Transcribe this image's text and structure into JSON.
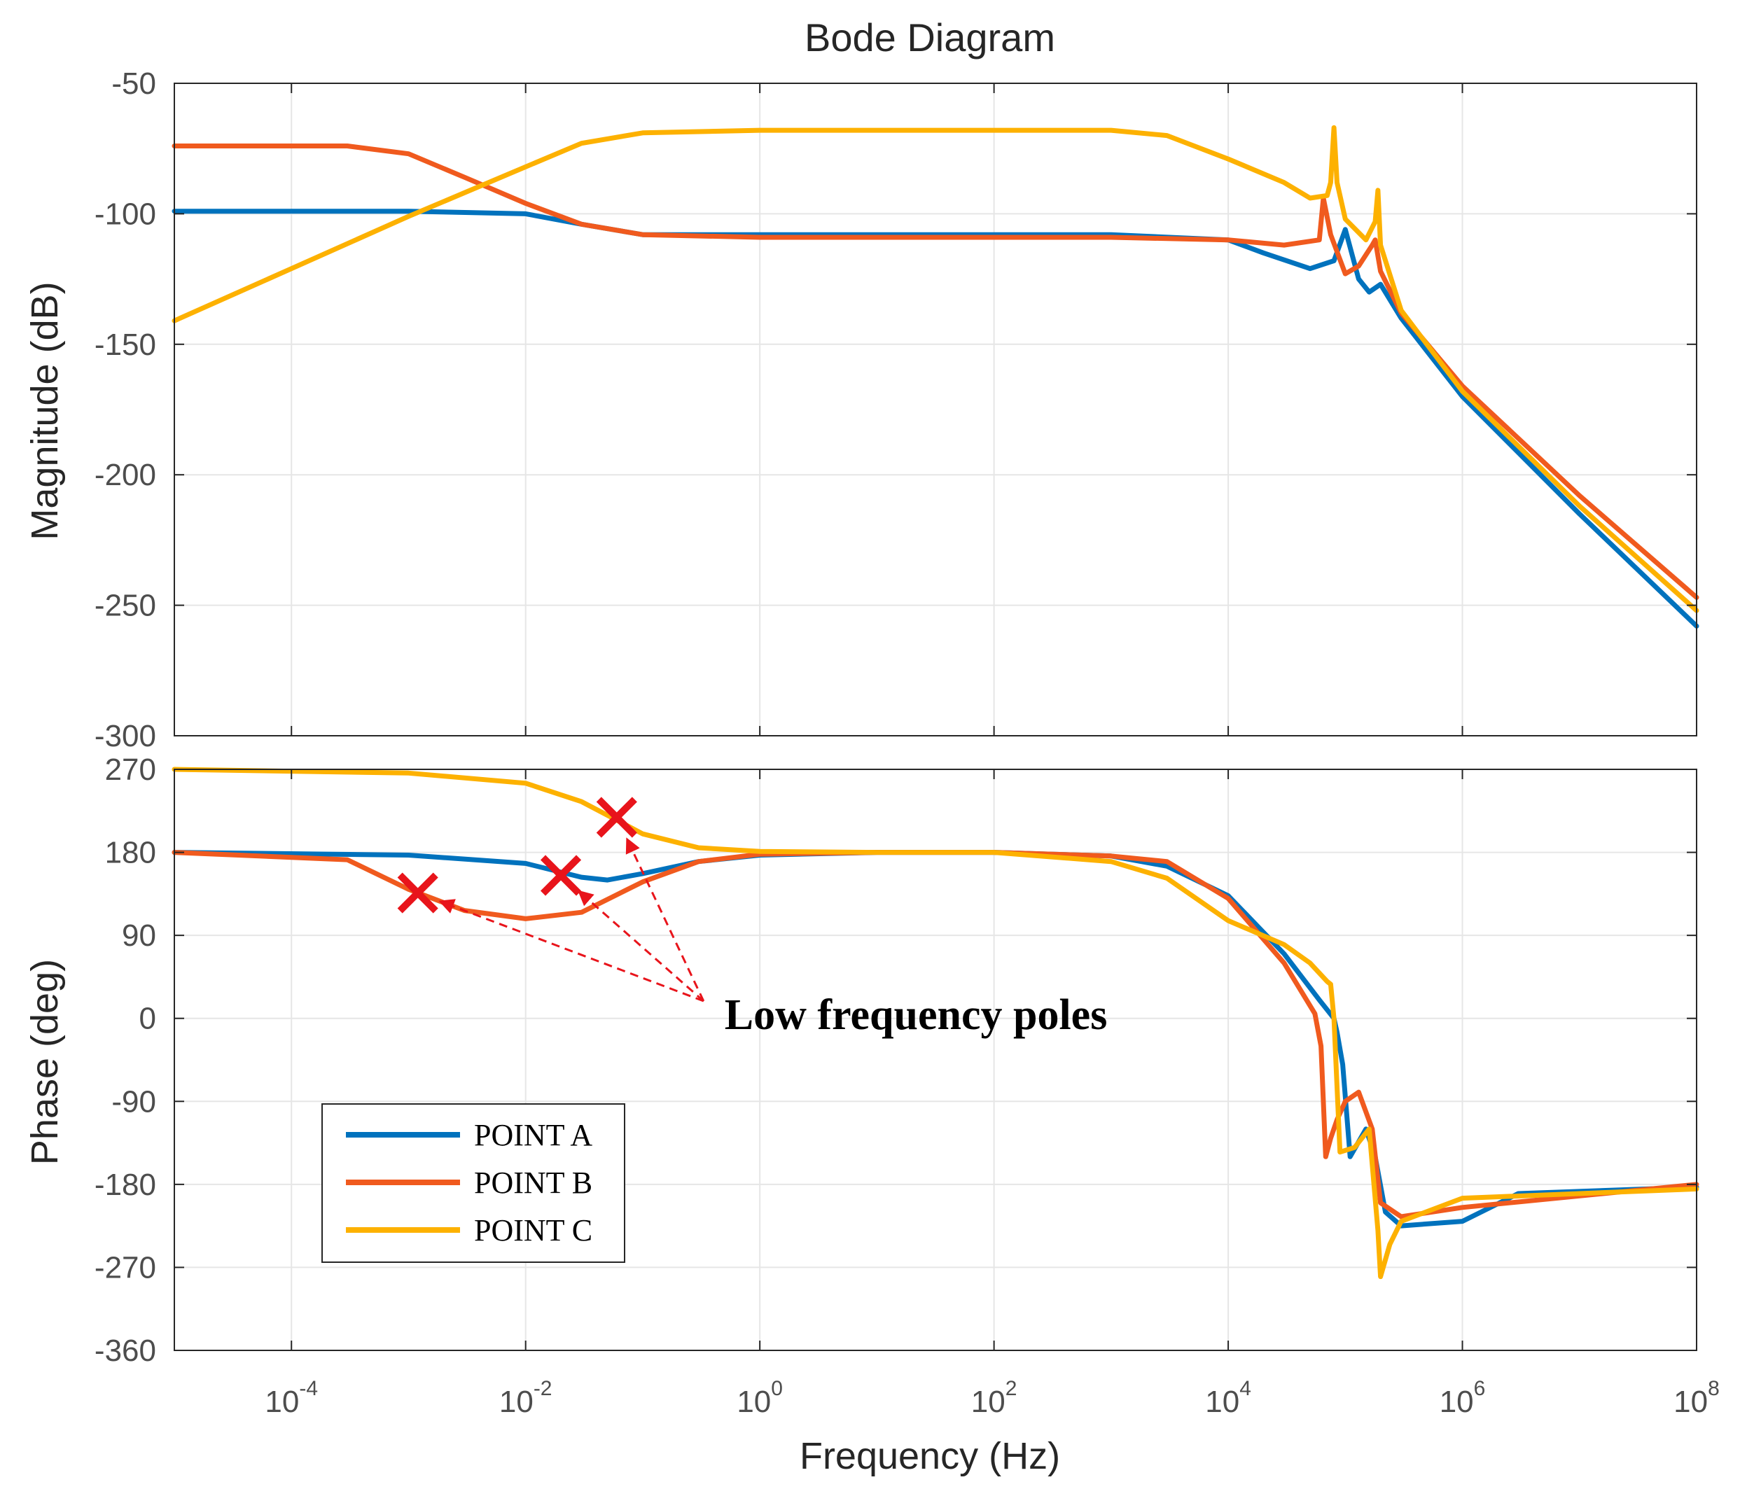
{
  "colors": {
    "background": "#ffffff",
    "axes": "#262626",
    "grid": "#e6e6e6",
    "point_a": "#0072bd",
    "point_b": "#f05a1e",
    "point_c": "#fdb100",
    "marker": "#e8141b"
  },
  "chart_data": {
    "type": "line",
    "title": "Bode Diagram",
    "xlabel": "Frequency  (Hz)",
    "xscale": "log",
    "xlim": [
      1e-05,
      100000000
    ],
    "xtick_labels": [
      {
        "value": 0.0001,
        "base": "10",
        "exp": "-4"
      },
      {
        "value": 0.01,
        "base": "10",
        "exp": "-2"
      },
      {
        "value": 1,
        "base": "10",
        "exp": "0"
      },
      {
        "value": 100,
        "base": "10",
        "exp": "2"
      },
      {
        "value": 10000,
        "base": "10",
        "exp": "4"
      },
      {
        "value": 1000000,
        "base": "10",
        "exp": "6"
      },
      {
        "value": 100000000,
        "base": "10",
        "exp": "8"
      }
    ],
    "grid": true,
    "legend": {
      "placement": "bottom-left of phase panel",
      "entries": [
        "POINT A",
        "POINT B",
        "POINT C"
      ]
    },
    "panels": [
      {
        "name": "magnitude",
        "ylabel": "Magnitude (dB)",
        "ylim": [
          -300,
          -50
        ],
        "yticks": [
          -50,
          -100,
          -150,
          -200,
          -250,
          -300
        ],
        "series": [
          {
            "name": "POINT A",
            "x": [
              1e-05,
              0.001,
              0.01,
              0.03,
              0.1,
              1,
              10,
              100,
              1000,
              10000,
              20000,
              50000,
              80000,
              100000,
              130000,
              160000,
              200000,
              300000,
              1000000,
              10000000,
              100000000
            ],
            "y": [
              -99,
              -99,
              -100,
              -104,
              -108,
              -108,
              -108,
              -108,
              -108,
              -110,
              -115,
              -121,
              -118,
              -106,
              -125,
              -130,
              -127,
              -140,
              -170,
              -215,
              -258
            ]
          },
          {
            "name": "POINT B",
            "x": [
              1e-05,
              0.0003,
              0.001,
              0.003,
              0.01,
              0.03,
              0.1,
              1,
              10,
              100,
              1000,
              10000,
              30000,
              60000,
              65000,
              75000,
              100000,
              130000,
              170000,
              180000,
              200000,
              300000,
              1000000,
              10000000,
              100000000
            ],
            "y": [
              -74,
              -74,
              -77,
              -86,
              -96,
              -104,
              -108,
              -109,
              -109,
              -109,
              -109,
              -110,
              -112,
              -110,
              -94,
              -108,
              -123,
              -120,
              -112,
              -110,
              -122,
              -138,
              -166,
              -208,
              -247
            ]
          },
          {
            "name": "POINT C",
            "x": [
              1e-05,
              0.0001,
              0.001,
              0.01,
              0.03,
              0.1,
              1,
              10,
              100,
              1000,
              3000,
              10000,
              30000,
              50000,
              70000,
              75000,
              80000,
              85000,
              100000,
              150000,
              180000,
              190000,
              200000,
              300000,
              1000000,
              10000000,
              100000000
            ],
            "y": [
              -141,
              -121,
              -101,
              -82,
              -73,
              -69,
              -68,
              -68,
              -68,
              -68,
              -70,
              -79,
              -88,
              -94,
              -93,
              -88,
              -67,
              -88,
              -102,
              -110,
              -103,
              -91,
              -112,
              -137,
              -168,
              -212,
              -252
            ]
          }
        ]
      },
      {
        "name": "phase",
        "ylabel": "Phase (deg)",
        "ylim": [
          -360,
          270
        ],
        "yticks": [
          270,
          180,
          90,
          0,
          -90,
          -180,
          -270,
          -360
        ],
        "series": [
          {
            "name": "POINT A",
            "x": [
              1e-05,
              0.001,
              0.01,
              0.03,
              0.05,
              0.1,
              0.3,
              1,
              10,
              100,
              1000,
              3000,
              10000,
              30000,
              60000,
              80000,
              85000,
              95000,
              110000,
              150000,
              180000,
              220000,
              300000,
              1000000,
              3000000,
              100000000
            ],
            "y": [
              180,
              177,
              168,
              153,
              150,
              157,
              170,
              177,
              180,
              180,
              176,
              165,
              133,
              70,
              20,
              0,
              -15,
              -50,
              -150,
              -120,
              -150,
              -210,
              -225,
              -220,
              -190,
              -183
            ]
          },
          {
            "name": "POINT B",
            "x": [
              1e-05,
              0.0003,
              0.001,
              0.003,
              0.01,
              0.03,
              0.1,
              0.3,
              1,
              10,
              100,
              1000,
              3000,
              10000,
              30000,
              55000,
              62000,
              68000,
              75000,
              85000,
              100000,
              130000,
              170000,
              200000,
              300000,
              1000000,
              100000000
            ],
            "y": [
              180,
              172,
              140,
              117,
              108,
              115,
              148,
              170,
              178,
              180,
              180,
              176,
              170,
              130,
              60,
              5,
              -30,
              -150,
              -130,
              -110,
              -90,
              -80,
              -120,
              -200,
              -215,
              -205,
              -180
            ]
          },
          {
            "name": "POINT C",
            "x": [
              1e-05,
              0.001,
              0.01,
              0.03,
              0.06,
              0.1,
              0.3,
              1,
              10,
              100,
              1000,
              3000,
              10000,
              30000,
              50000,
              70000,
              75000,
              80000,
              90000,
              120000,
              160000,
              190000,
              200000,
              240000,
              300000,
              1000000,
              100000000
            ],
            "y": [
              270,
              266,
              255,
              235,
              215,
              200,
              185,
              181,
              180,
              180,
              170,
              152,
              106,
              80,
              60,
              40,
              37,
              0,
              -145,
              -140,
              -120,
              -230,
              -280,
              -245,
              -220,
              -195,
              -185
            ]
          }
        ]
      }
    ],
    "annotations": [
      {
        "text": "Low frequency poles",
        "panel": "phase",
        "x": 0.5,
        "y": 40
      },
      {
        "type": "pole-marker",
        "series": "POINT B",
        "panel": "phase",
        "x": 0.0012,
        "y": 136
      },
      {
        "type": "pole-marker",
        "series": "POINT A",
        "panel": "phase",
        "x": 0.02,
        "y": 155
      },
      {
        "type": "pole-marker",
        "series": "POINT C",
        "panel": "phase",
        "x": 0.06,
        "y": 218
      }
    ]
  }
}
